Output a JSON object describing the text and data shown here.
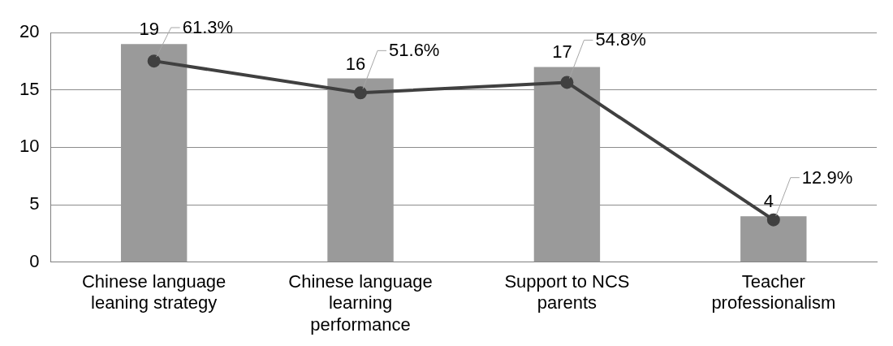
{
  "chart_data": {
    "type": "bar",
    "categories": [
      "Chinese language leaning strategy",
      "Chinese language learning performance",
      "Support to NCS parents",
      "Teacher professionalism"
    ],
    "series": [
      {
        "color": "#9a9a9a",
        "values": [
          19,
          16,
          17,
          4
        ],
        "value_labels": [
          "19",
          "16",
          "17",
          "4"
        ]
      },
      {
        "type": "line",
        "axis": "y2",
        "color": "#404040",
        "values": [
          61.3,
          51.6,
          54.8,
          12.9
        ],
        "value_labels": [
          "61.3%",
          "51.6%",
          "54.8%",
          "12.9%"
        ]
      }
    ],
    "ylim": [
      0,
      20
    ],
    "yticks": [
      0,
      5,
      10,
      15,
      20
    ],
    "grid": "y",
    "legend": false,
    "marker": "circle",
    "line_style": "solid"
  }
}
